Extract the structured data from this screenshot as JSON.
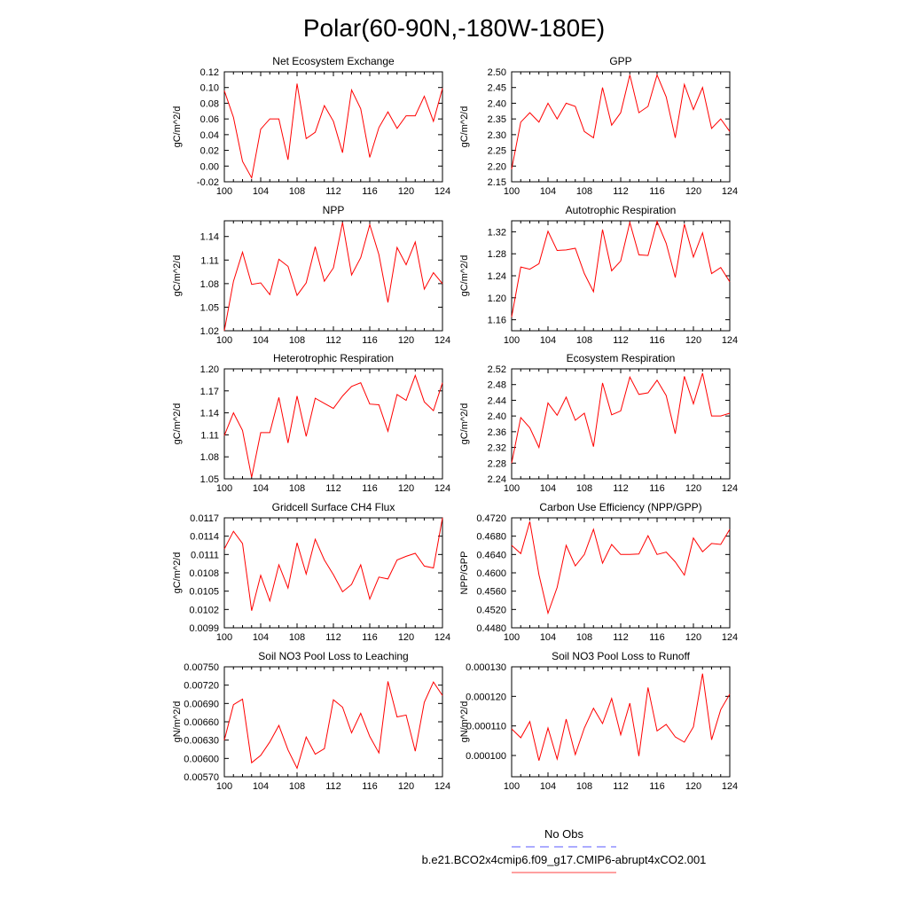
{
  "figure_title": "Polar(60-90N,-180W-180E)",
  "legend": {
    "entries": [
      {
        "label": "No Obs",
        "color": "#0000ff",
        "style": "dashed"
      },
      {
        "label": "b.e21.BCO2x4cmip6.f09_g17.CMIP6-abrupt4xCO2.001",
        "color": "#ff0000",
        "style": "solid"
      }
    ]
  },
  "chart_data": [
    {
      "type": "line",
      "title": "Net Ecosystem Exchange",
      "ylabel": "gC/m^2/d",
      "xlim": [
        100,
        124
      ],
      "xticks": [
        "100",
        "104",
        "108",
        "112",
        "116",
        "120",
        "124"
      ],
      "ylim": [
        -0.02,
        0.12
      ],
      "yticks": [
        "-0.02",
        "0.00",
        "0.02",
        "0.04",
        "0.06",
        "0.08",
        "0.10",
        "0.12"
      ],
      "series": [
        {
          "name": "b.e21.BCO2x4cmip6.f09_g17.CMIP6-abrupt4xCO2.001",
          "color": "#ff0000",
          "x": [
            100,
            101,
            102,
            103,
            104,
            105,
            106,
            107,
            108,
            109,
            110,
            111,
            112,
            113,
            114,
            115,
            116,
            117,
            118,
            119,
            120,
            121,
            122,
            123,
            124
          ],
          "values": [
            0.096,
            0.062,
            0.006,
            -0.015,
            0.047,
            0.06,
            0.06,
            0.008,
            0.105,
            0.035,
            0.043,
            0.077,
            0.057,
            0.017,
            0.097,
            0.073,
            0.011,
            0.049,
            0.069,
            0.048,
            0.064,
            0.064,
            0.089,
            0.057,
            0.099
          ]
        }
      ]
    },
    {
      "type": "line",
      "title": "GPP",
      "ylabel": "gC/m^2/d",
      "xlim": [
        100,
        124
      ],
      "xticks": [
        "100",
        "104",
        "108",
        "112",
        "116",
        "120",
        "124"
      ],
      "ylim": [
        2.15,
        2.5
      ],
      "yticks": [
        "2.15",
        "2.20",
        "2.25",
        "2.30",
        "2.35",
        "2.40",
        "2.45",
        "2.50"
      ],
      "series": [
        {
          "name": "b.e21.BCO2x4cmip6.f09_g17.CMIP6-abrupt4xCO2.001",
          "color": "#ff0000",
          "x": [
            100,
            101,
            102,
            103,
            104,
            105,
            106,
            107,
            108,
            109,
            110,
            111,
            112,
            113,
            114,
            115,
            116,
            117,
            118,
            119,
            120,
            121,
            122,
            123,
            124
          ],
          "values": [
            2.19,
            2.34,
            2.37,
            2.34,
            2.4,
            2.35,
            2.4,
            2.39,
            2.31,
            2.29,
            2.45,
            2.33,
            2.37,
            2.49,
            2.37,
            2.39,
            2.49,
            2.42,
            2.29,
            2.46,
            2.38,
            2.45,
            2.32,
            2.35,
            2.31
          ]
        }
      ]
    },
    {
      "type": "line",
      "title": "NPP",
      "ylabel": "gC/m^2/d",
      "xlim": [
        100,
        124
      ],
      "xticks": [
        "100",
        "104",
        "108",
        "112",
        "116",
        "120",
        "124"
      ],
      "ylim": [
        1.02,
        1.16
      ],
      "yticks": [
        "1.02",
        "1.05",
        "1.08",
        "1.11",
        "1.14"
      ],
      "series": [
        {
          "name": "b.e21.BCO2x4cmip6.f09_g17.CMIP6-abrupt4xCO2.001",
          "color": "#ff0000",
          "x": [
            100,
            101,
            102,
            103,
            104,
            105,
            106,
            107,
            108,
            109,
            110,
            111,
            112,
            113,
            114,
            115,
            116,
            117,
            118,
            119,
            120,
            121,
            122,
            123,
            124
          ],
          "values": [
            1.02,
            1.083,
            1.12,
            1.079,
            1.081,
            1.066,
            1.111,
            1.102,
            1.065,
            1.081,
            1.127,
            1.083,
            1.1,
            1.158,
            1.091,
            1.113,
            1.155,
            1.117,
            1.056,
            1.126,
            1.104,
            1.133,
            1.073,
            1.094,
            1.08
          ]
        }
      ]
    },
    {
      "type": "line",
      "title": "Autotrophic Respiration",
      "ylabel": "gC/m^2/d",
      "xlim": [
        100,
        124
      ],
      "xticks": [
        "100",
        "104",
        "108",
        "112",
        "116",
        "120",
        "124"
      ],
      "ylim": [
        1.14,
        1.34
      ],
      "yticks": [
        "1.16",
        "1.20",
        "1.24",
        "1.28",
        "1.32"
      ],
      "series": [
        {
          "name": "b.e21.BCO2x4cmip6.f09_g17.CMIP6-abrupt4xCO2.001",
          "color": "#ff0000",
          "x": [
            100,
            101,
            102,
            103,
            104,
            105,
            106,
            107,
            108,
            109,
            110,
            111,
            112,
            113,
            114,
            115,
            116,
            117,
            118,
            119,
            120,
            121,
            122,
            123,
            124
          ],
          "values": [
            1.165,
            1.256,
            1.252,
            1.262,
            1.321,
            1.286,
            1.287,
            1.29,
            1.244,
            1.211,
            1.324,
            1.249,
            1.267,
            1.337,
            1.278,
            1.277,
            1.339,
            1.299,
            1.237,
            1.334,
            1.274,
            1.318,
            1.244,
            1.255,
            1.229
          ]
        }
      ]
    },
    {
      "type": "line",
      "title": "Heterotrophic Respiration",
      "ylabel": "gC/m^2/d",
      "xlim": [
        100,
        124
      ],
      "xticks": [
        "100",
        "104",
        "108",
        "112",
        "116",
        "120",
        "124"
      ],
      "ylim": [
        1.05,
        1.2
      ],
      "yticks": [
        "1.05",
        "1.08",
        "1.11",
        "1.14",
        "1.17",
        "1.20"
      ],
      "series": [
        {
          "name": "b.e21.BCO2x4cmip6.f09_g17.CMIP6-abrupt4xCO2.001",
          "color": "#ff0000",
          "x": [
            100,
            101,
            102,
            103,
            104,
            105,
            106,
            107,
            108,
            109,
            110,
            111,
            112,
            113,
            114,
            115,
            116,
            117,
            118,
            119,
            120,
            121,
            122,
            123,
            124
          ],
          "values": [
            1.109,
            1.14,
            1.116,
            1.052,
            1.113,
            1.113,
            1.161,
            1.099,
            1.163,
            1.108,
            1.16,
            1.153,
            1.146,
            1.163,
            1.176,
            1.181,
            1.152,
            1.151,
            1.115,
            1.165,
            1.157,
            1.191,
            1.155,
            1.143,
            1.181
          ]
        }
      ]
    },
    {
      "type": "line",
      "title": "Ecosystem Respiration",
      "ylabel": "gC/m^2/d",
      "xlim": [
        100,
        124
      ],
      "xticks": [
        "100",
        "104",
        "108",
        "112",
        "116",
        "120",
        "124"
      ],
      "ylim": [
        2.24,
        2.52
      ],
      "yticks": [
        "2.24",
        "2.28",
        "2.32",
        "2.36",
        "2.40",
        "2.44",
        "2.48",
        "2.52"
      ],
      "series": [
        {
          "name": "b.e21.BCO2x4cmip6.f09_g17.CMIP6-abrupt4xCO2.001",
          "color": "#ff0000",
          "x": [
            100,
            101,
            102,
            103,
            104,
            105,
            106,
            107,
            108,
            109,
            110,
            111,
            112,
            113,
            114,
            115,
            116,
            117,
            118,
            119,
            120,
            121,
            122,
            123,
            124
          ],
          "values": [
            2.28,
            2.396,
            2.37,
            2.32,
            2.433,
            2.402,
            2.448,
            2.389,
            2.407,
            2.322,
            2.484,
            2.403,
            2.413,
            2.499,
            2.455,
            2.459,
            2.491,
            2.452,
            2.355,
            2.501,
            2.431,
            2.509,
            2.4,
            2.4,
            2.407
          ]
        }
      ]
    },
    {
      "type": "line",
      "title": "Gridcell Surface CH4 Flux",
      "ylabel": "gC/m^2/d",
      "xlim": [
        100,
        124
      ],
      "xticks": [
        "100",
        "104",
        "108",
        "112",
        "116",
        "120",
        "124"
      ],
      "ylim": [
        0.0099,
        0.0117
      ],
      "yticks": [
        "0.0099",
        "0.0102",
        "0.0105",
        "0.0108",
        "0.0111",
        "0.0114",
        "0.0117"
      ],
      "series": [
        {
          "name": "b.e21.BCO2x4cmip6.f09_g17.CMIP6-abrupt4xCO2.001",
          "color": "#ff0000",
          "x": [
            100,
            101,
            102,
            103,
            104,
            105,
            106,
            107,
            108,
            109,
            110,
            111,
            112,
            113,
            114,
            115,
            116,
            117,
            118,
            119,
            120,
            121,
            122,
            123,
            124
          ],
          "values": [
            0.01119,
            0.01148,
            0.01128,
            0.01018,
            0.01076,
            0.01034,
            0.01093,
            0.01055,
            0.01129,
            0.01078,
            0.01135,
            0.01101,
            0.01077,
            0.01049,
            0.01061,
            0.01093,
            0.01037,
            0.01073,
            0.0107,
            0.01101,
            0.01107,
            0.01112,
            0.01091,
            0.01088,
            0.0117
          ]
        }
      ]
    },
    {
      "type": "line",
      "title": "Carbon Use Efficiency (NPP/GPP)",
      "ylabel": "NPP/GPP",
      "xlim": [
        100,
        124
      ],
      "xticks": [
        "100",
        "104",
        "108",
        "112",
        "116",
        "120",
        "124"
      ],
      "ylim": [
        0.448,
        0.472
      ],
      "yticks": [
        "0.4480",
        "0.4520",
        "0.4560",
        "0.4600",
        "0.4640",
        "0.4680",
        "0.4720"
      ],
      "series": [
        {
          "name": "b.e21.BCO2x4cmip6.f09_g17.CMIP6-abrupt4xCO2.001",
          "color": "#ff0000",
          "x": [
            100,
            101,
            102,
            103,
            104,
            105,
            106,
            107,
            108,
            109,
            110,
            111,
            112,
            113,
            114,
            115,
            116,
            117,
            118,
            119,
            120,
            121,
            122,
            123,
            124
          ],
          "values": [
            0.466,
            0.4642,
            0.4712,
            0.4596,
            0.4512,
            0.4568,
            0.466,
            0.4615,
            0.464,
            0.4695,
            0.4621,
            0.4662,
            0.464,
            0.464,
            0.4641,
            0.4681,
            0.464,
            0.4645,
            0.4624,
            0.4595,
            0.4676,
            0.4646,
            0.4664,
            0.4662,
            0.4695
          ]
        }
      ]
    },
    {
      "type": "line",
      "title": "Soil NO3 Pool Loss to Leaching",
      "ylabel": "gN/m^2/d",
      "xlim": [
        100,
        124
      ],
      "xticks": [
        "100",
        "104",
        "108",
        "112",
        "116",
        "120",
        "124"
      ],
      "ylim": [
        0.0057,
        0.0075
      ],
      "yticks": [
        "0.00570",
        "0.00600",
        "0.00630",
        "0.00660",
        "0.00690",
        "0.00720",
        "0.00750"
      ],
      "series": [
        {
          "name": "b.e21.BCO2x4cmip6.f09_g17.CMIP6-abrupt4xCO2.001",
          "color": "#ff0000",
          "x": [
            100,
            101,
            102,
            103,
            104,
            105,
            106,
            107,
            108,
            109,
            110,
            111,
            112,
            113,
            114,
            115,
            116,
            117,
            118,
            119,
            120,
            121,
            122,
            123,
            124
          ],
          "values": [
            0.0063,
            0.00688,
            0.00697,
            0.00593,
            0.00605,
            0.00627,
            0.00654,
            0.00614,
            0.00584,
            0.00635,
            0.00607,
            0.00616,
            0.00696,
            0.00684,
            0.00642,
            0.00674,
            0.00636,
            0.00609,
            0.00726,
            0.00668,
            0.00671,
            0.00612,
            0.00692,
            0.00725,
            0.00703
          ]
        }
      ]
    },
    {
      "type": "line",
      "title": "Soil NO3 Pool Loss to Runoff",
      "ylabel": "gN/m^2/d",
      "xlim": [
        100,
        124
      ],
      "xticks": [
        "100",
        "104",
        "108",
        "112",
        "116",
        "120",
        "124"
      ],
      "ylim": [
        9.28e-05,
        0.00013
      ],
      "yticks": [
        "0.000100",
        "0.000110",
        "0.000120",
        "0.000130"
      ],
      "series": [
        {
          "name": "b.e21.BCO2x4cmip6.f09_g17.CMIP6-abrupt4xCO2.001",
          "color": "#ff0000",
          "x": [
            100,
            101,
            102,
            103,
            104,
            105,
            106,
            107,
            108,
            109,
            110,
            111,
            112,
            113,
            114,
            115,
            116,
            117,
            118,
            119,
            120,
            121,
            122,
            123,
            124
          ],
          "values": [
            0.000109,
            0.000106,
            0.0001115,
            9.83e-05,
            0.0001093,
            9.88e-05,
            0.0001123,
            0.0001003,
            0.0001093,
            0.000116,
            0.0001108,
            0.0001193,
            0.000107,
            0.0001177,
            9.98e-05,
            0.000123,
            0.0001083,
            0.0001105,
            0.0001063,
            0.0001045,
            0.0001097,
            0.0001277,
            0.0001053,
            0.0001155,
            0.0001208
          ]
        }
      ]
    }
  ]
}
